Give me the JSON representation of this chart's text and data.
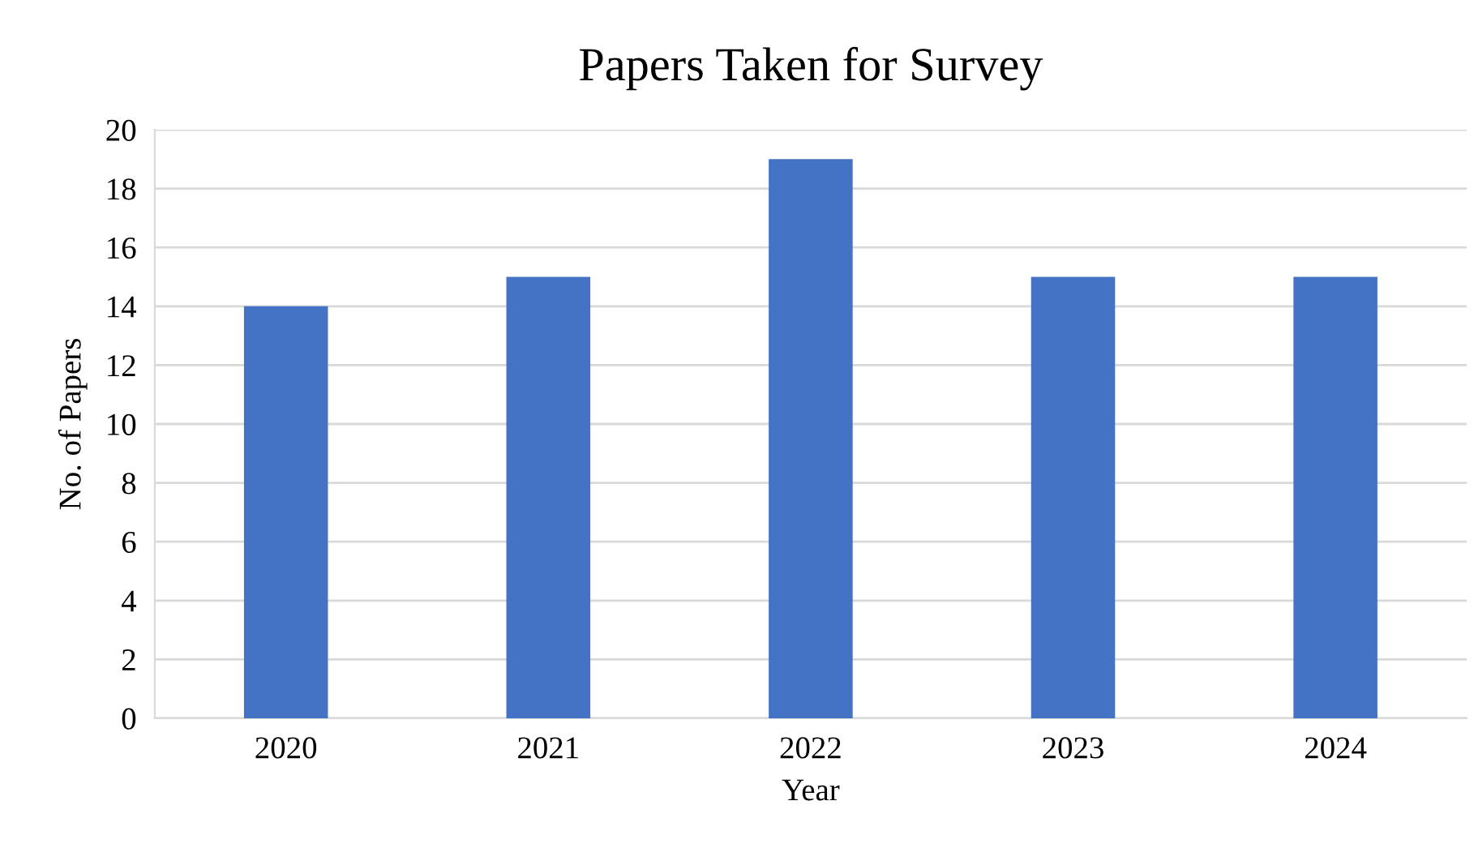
{
  "chart_data": {
    "type": "bar",
    "title": "Papers Taken for Survey",
    "xlabel": "Year",
    "ylabel": "No. of Papers",
    "categories": [
      "2020",
      "2021",
      "2022",
      "2023",
      "2024"
    ],
    "values": [
      14,
      15,
      19,
      15,
      15
    ],
    "color": "#4472c4",
    "ylim": [
      0,
      20
    ],
    "yticks": [
      0,
      2,
      4,
      6,
      8,
      10,
      12,
      14,
      16,
      18,
      20
    ],
    "grid": "y",
    "legend": false
  }
}
